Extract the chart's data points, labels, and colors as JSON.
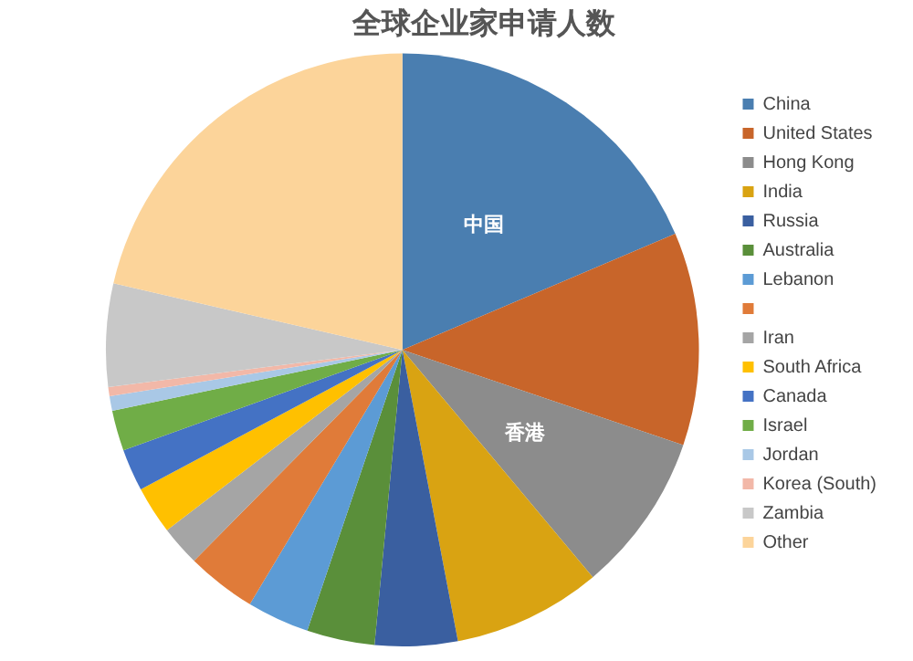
{
  "chart_data": {
    "type": "pie",
    "title": "全球企业家申请人数",
    "categories": [
      "China",
      "United States",
      "Hong Kong",
      "India",
      "Russia",
      "Australia",
      "Lebanon",
      null,
      "Iran",
      "South Africa",
      "Canada",
      "Israel",
      "Jordan",
      "Korea (South)",
      "Zambia",
      "Other"
    ],
    "values": [
      18.6,
      11.6,
      8.7,
      8.1,
      4.5,
      3.7,
      3.4,
      3.8,
      2.2,
      2.6,
      2.3,
      2.2,
      0.8,
      0.5,
      5.6,
      21.4
    ],
    "colors": [
      "#4a7eb0",
      "#c8652a",
      "#8c8c8c",
      "#d9a312",
      "#3a5fa0",
      "#5a8f3a",
      "#5c9bd5",
      "#e07b39",
      "#a5a5a5",
      "#ffc000",
      "#4472c4",
      "#70ad47",
      "#a9c8e6",
      "#f2b8a8",
      "#c8c8c8",
      "#fcd49a"
    ],
    "value_labels": [
      "中国",
      null,
      "香港",
      null,
      null,
      null,
      null,
      null,
      null,
      null,
      null,
      null,
      null,
      null,
      null,
      null
    ],
    "legend": "right"
  }
}
